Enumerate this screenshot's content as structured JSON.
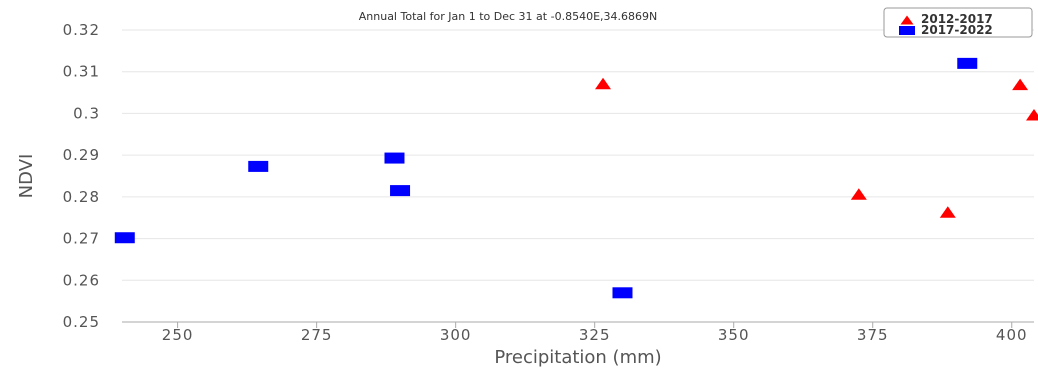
{
  "chart_data": {
    "type": "scatter",
    "title": "Annual Total for Jan 1 to Dec 31 at -0.8540E,34.6869N",
    "xlabel": "Precipitation (mm)",
    "ylabel": "NDVI",
    "xlim": [
      240,
      404
    ],
    "ylim": [
      0.25,
      0.32
    ],
    "x_ticks": [
      250,
      275,
      300,
      325,
      350,
      375,
      400
    ],
    "y_ticks": [
      0.25,
      0.26,
      0.27,
      0.28,
      0.29,
      0.3,
      0.31,
      0.32
    ],
    "x_tick_labels": [
      "250",
      "275",
      "300",
      "325",
      "350",
      "375",
      "400"
    ],
    "y_tick_labels": [
      "0.25",
      "0.26",
      "0.27",
      "0.28",
      "0.29",
      "0.3",
      "0.31",
      "0.32"
    ],
    "grid": true,
    "legend_position": "top-right",
    "series": [
      {
        "name": "2012-2017",
        "marker": "triangle",
        "color": "#ff0000",
        "points": [
          {
            "x": 326.5,
            "y": 0.307
          },
          {
            "x": 372.5,
            "y": 0.2805
          },
          {
            "x": 388.5,
            "y": 0.2762
          },
          {
            "x": 401.5,
            "y": 0.3068
          },
          {
            "x": 404.0,
            "y": 0.2995
          }
        ]
      },
      {
        "name": "2017-2022",
        "marker": "square",
        "color": "#0000ff",
        "points": [
          {
            "x": 240.5,
            "y": 0.2702
          },
          {
            "x": 264.5,
            "y": 0.2873
          },
          {
            "x": 289.0,
            "y": 0.2893
          },
          {
            "x": 290.0,
            "y": 0.2815
          },
          {
            "x": 330.0,
            "y": 0.257
          },
          {
            "x": 392.0,
            "y": 0.312
          }
        ]
      }
    ]
  }
}
